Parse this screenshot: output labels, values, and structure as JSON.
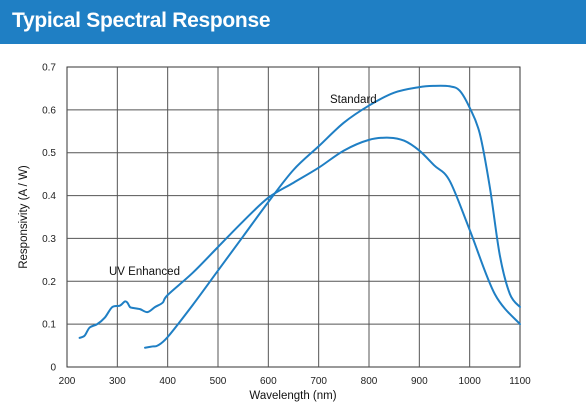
{
  "header": {
    "title": "Typical Spectral Response"
  },
  "colors": {
    "header_bg": "#1f7fc4",
    "series_line": "#1f7fc4",
    "grid": "#555555"
  },
  "chart_data": {
    "type": "line",
    "xlabel": "Wavelength (nm)",
    "ylabel": "Responsivity (A / W)",
    "xlim": [
      200,
      1100
    ],
    "ylim": [
      0,
      0.7
    ],
    "xticks": [
      200,
      300,
      400,
      500,
      600,
      700,
      800,
      900,
      1000,
      1100
    ],
    "yticks": [
      0,
      0.1,
      0.2,
      0.3,
      0.4,
      0.5,
      0.6,
      0.7
    ],
    "grid": true,
    "annotations": [
      {
        "text": "Standard",
        "x": 718,
        "y": 0.62
      },
      {
        "text": "UV Enhanced",
        "x": 292,
        "y": 0.215
      }
    ],
    "series": [
      {
        "x": [
          355,
          370,
          380,
          400,
          450,
          500,
          550,
          600,
          650,
          700,
          750,
          800,
          850,
          900,
          930,
          960,
          980,
          1000,
          1020,
          1040,
          1060,
          1080,
          1100
        ],
        "y": [
          0.045,
          0.048,
          0.05,
          0.07,
          0.145,
          0.225,
          0.305,
          0.385,
          0.46,
          0.515,
          0.57,
          0.61,
          0.64,
          0.653,
          0.656,
          0.655,
          0.645,
          0.605,
          0.545,
          0.42,
          0.26,
          0.17,
          0.14
        ]
      },
      {
        "x": [
          225,
          235,
          245,
          260,
          275,
          290,
          305,
          315,
          320,
          325,
          330,
          345,
          360,
          375,
          390,
          400,
          450,
          500,
          550,
          600,
          650,
          700,
          750,
          800,
          840,
          870,
          900,
          930,
          960,
          1000,
          1050,
          1100
        ],
        "y": [
          0.068,
          0.073,
          0.092,
          0.1,
          0.115,
          0.14,
          0.143,
          0.153,
          0.15,
          0.14,
          0.138,
          0.135,
          0.128,
          0.14,
          0.15,
          0.168,
          0.22,
          0.28,
          0.34,
          0.395,
          0.43,
          0.465,
          0.505,
          0.53,
          0.535,
          0.528,
          0.505,
          0.47,
          0.435,
          0.32,
          0.17,
          0.1
        ]
      }
    ]
  }
}
